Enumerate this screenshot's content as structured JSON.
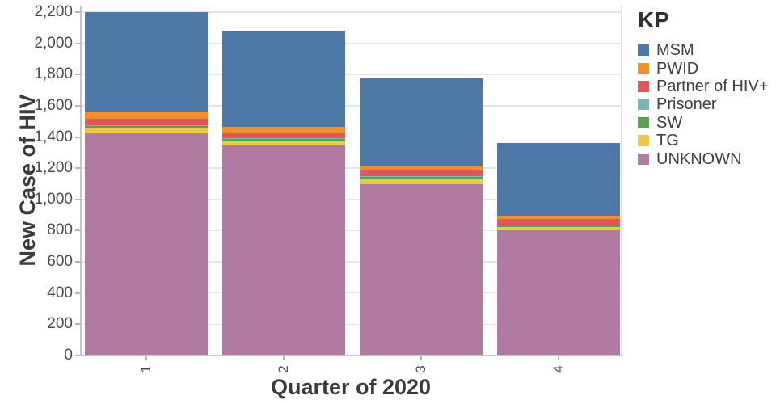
{
  "chart_data": {
    "type": "bar",
    "stacked": true,
    "xlabel": "Quarter of 2020",
    "ylabel": "New Case of HIV",
    "legend_title": "KP",
    "legend_position": "right",
    "grid": true,
    "categories": [
      "1",
      "2",
      "3",
      "4"
    ],
    "series": [
      {
        "name": "MSM",
        "color": "#4e79a7",
        "values": [
          635,
          616,
          565,
          462
        ]
      },
      {
        "name": "PWID",
        "color": "#f28e2b",
        "values": [
          50,
          41,
          22,
          21
        ]
      },
      {
        "name": "Partner of HIV+",
        "color": "#e15759",
        "values": [
          40,
          31,
          40,
          39
        ]
      },
      {
        "name": "Prisoner",
        "color": "#76b7b2",
        "values": [
          3,
          2,
          2,
          2
        ]
      },
      {
        "name": "SW",
        "color": "#59a14f",
        "values": [
          15,
          15,
          16,
          14
        ]
      },
      {
        "name": "TG",
        "color": "#edc948",
        "values": [
          32,
          30,
          30,
          22
        ]
      },
      {
        "name": "UNKNOWN",
        "color": "#b07aa1",
        "values": [
          1425,
          1345,
          1100,
          800
        ]
      }
    ],
    "stack_order_bottom_to_top": [
      "UNKNOWN",
      "TG",
      "SW",
      "Prisoner",
      "Partner of HIV+",
      "PWID",
      "MSM"
    ],
    "ylim": [
      0,
      2200
    ],
    "ytick_step": 200,
    "ytick_labels": [
      "0",
      "200",
      "400",
      "600",
      "800",
      "1,000",
      "1,200",
      "1,400",
      "1,600",
      "1,800",
      "2,000",
      "2,200"
    ]
  }
}
